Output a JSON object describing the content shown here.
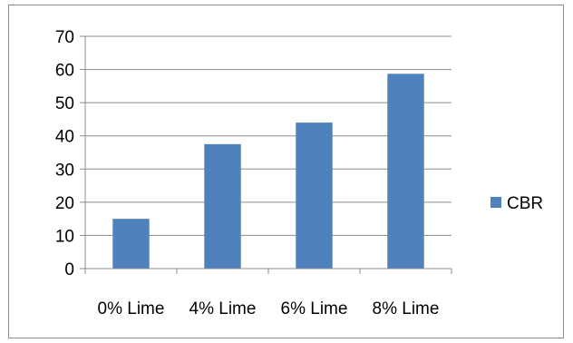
{
  "chart_data": {
    "type": "bar",
    "title": "",
    "xlabel": "",
    "ylabel": "",
    "categories": [
      "0% Lime",
      "4% Lime",
      "6% Lime",
      "8% Lime"
    ],
    "series": [
      {
        "name": "CBR",
        "values": [
          15,
          37.5,
          44,
          58.7
        ],
        "color": "#4f81bd"
      }
    ],
    "ylim": [
      0,
      70
    ],
    "yticks": [
      0,
      10,
      20,
      30,
      40,
      50,
      60,
      70
    ],
    "grid": true,
    "legend_position": "right"
  }
}
